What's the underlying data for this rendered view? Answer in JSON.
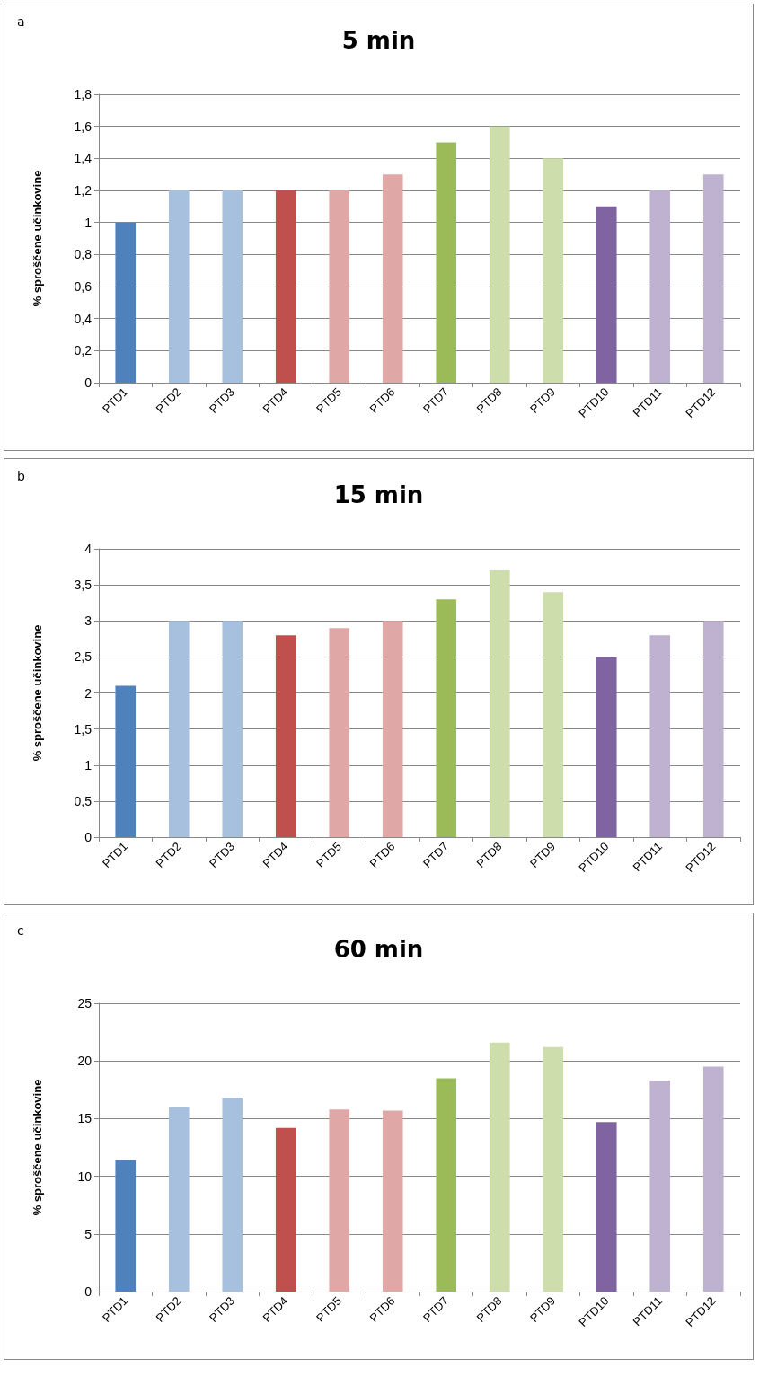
{
  "chart_data": [
    {
      "type": "bar",
      "title": "5 min",
      "ylabel": "% sproščene učinkovine",
      "annotations": [
        "a"
      ],
      "grid": "y",
      "categories": [
        "PTD1",
        "PTD2",
        "PTD3",
        "PTD4",
        "PTD5",
        "PTD6",
        "PTD7",
        "PTD8",
        "PTD9",
        "PTD10",
        "PTD11",
        "PTD12"
      ],
      "values": [
        1,
        1.2,
        1.2,
        1.2,
        1.2,
        1.3,
        1.5,
        1.6,
        1.4,
        1.1,
        1.2,
        1.3
      ],
      "colors": [
        "#4f81bd",
        "#a7c0de",
        "#a7c0de",
        "#c0504d",
        "#dfa8a6",
        "#dfa8a6",
        "#9bbb59",
        "#cdddac",
        "#cdddac",
        "#8064a2",
        "#bfb1d0",
        "#bfb1d0"
      ],
      "ylim": [
        0,
        1.8
      ],
      "yticks": [
        0,
        {
          "value": 0.2,
          "label": "0,2"
        },
        {
          "value": 0.4,
          "label": "0,4"
        },
        {
          "value": 0.6,
          "label": "0,6"
        },
        {
          "value": 0.8,
          "label": "0,8"
        },
        1,
        {
          "value": 1.2,
          "label": "1,2"
        },
        {
          "value": 1.4,
          "label": "1,4"
        },
        {
          "value": 1.6,
          "label": "1,6"
        },
        {
          "value": 1.8,
          "label": "1,8"
        }
      ]
    },
    {
      "type": "bar",
      "title": "15 min",
      "ylabel": "% sproščene učinkovine",
      "annotations": [
        "b"
      ],
      "grid": "y",
      "categories": [
        "PTD1",
        "PTD2",
        "PTD3",
        "PTD4",
        "PTD5",
        "PTD6",
        "PTD7",
        "PTD8",
        "PTD9",
        "PTD10",
        "PTD11",
        "PTD12"
      ],
      "values": [
        2.1,
        3,
        3,
        2.8,
        2.9,
        3,
        3.3,
        3.7,
        3.4,
        2.5,
        2.8,
        3
      ],
      "colors": [
        "#4f81bd",
        "#a7c0de",
        "#a7c0de",
        "#c0504d",
        "#dfa8a6",
        "#dfa8a6",
        "#9bbb59",
        "#cdddac",
        "#cdddac",
        "#8064a2",
        "#bfb1d0",
        "#bfb1d0"
      ],
      "ylim": [
        0,
        4
      ],
      "yticks": [
        0,
        {
          "value": 0.5,
          "label": "0,5"
        },
        1,
        {
          "value": 1.5,
          "label": "1,5"
        },
        2,
        {
          "value": 2.5,
          "label": "2,5"
        },
        3,
        {
          "value": 3.5,
          "label": "3,5"
        },
        4
      ]
    },
    {
      "type": "bar",
      "title": "60 min",
      "ylabel": "% sproščene učinkovine",
      "annotations": [
        "c"
      ],
      "grid": "y",
      "categories": [
        "PTD1",
        "PTD2",
        "PTD3",
        "PTD4",
        "PTD5",
        "PTD6",
        "PTD7",
        "PTD8",
        "PTD9",
        "PTD10",
        "PTD11",
        "PTD12"
      ],
      "values": [
        11.4,
        16,
        16.8,
        14.2,
        15.8,
        15.7,
        18.5,
        21.6,
        21.2,
        14.7,
        18.3,
        19.5
      ],
      "colors": [
        "#4f81bd",
        "#a7c0de",
        "#a7c0de",
        "#c0504d",
        "#dfa8a6",
        "#dfa8a6",
        "#9bbb59",
        "#cdddac",
        "#cdddac",
        "#8064a2",
        "#bfb1d0",
        "#bfb1d0"
      ],
      "ylim": [
        0,
        25
      ],
      "yticks": [
        0,
        5,
        10,
        15,
        20,
        25
      ]
    }
  ]
}
